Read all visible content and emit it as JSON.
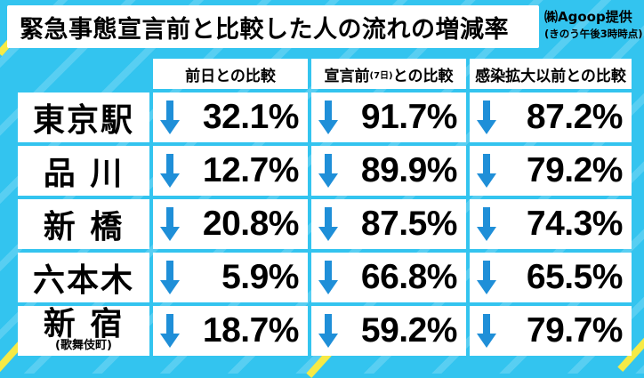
{
  "title": "緊急事態宣言前と比較した人の流れの増減率",
  "source": {
    "provider": "㈱Agoop提供",
    "time_note": "(きのう午後3時時点)"
  },
  "columns": [
    {
      "label": "前日との比較",
      "small": ""
    },
    {
      "label_pre": "宣言前",
      "small": "(7日)",
      "label_post": "との比較"
    },
    {
      "label": "感染拡大以前との比較",
      "small": ""
    }
  ],
  "rows": [
    {
      "station": "東京駅",
      "sub": "",
      "values": [
        "32.1%",
        "91.7%",
        "87.2%"
      ]
    },
    {
      "station": "品 川",
      "sub": "",
      "values": [
        "12.7%",
        "89.9%",
        "79.2%"
      ]
    },
    {
      "station": "新 橋",
      "sub": "",
      "values": [
        "20.8%",
        "87.5%",
        "74.3%"
      ]
    },
    {
      "station": "六本木",
      "sub": "",
      "values": [
        "5.9%",
        "66.8%",
        "65.5%"
      ]
    },
    {
      "station": "新 宿",
      "sub": "(歌舞伎町)",
      "values": [
        "18.7%",
        "59.2%",
        "79.7%"
      ]
    }
  ],
  "colors": {
    "background": "#33c4ef",
    "arrow": "#1f8fd8",
    "text": "#000000"
  },
  "icons": {
    "decrease": "down-arrow-icon"
  }
}
